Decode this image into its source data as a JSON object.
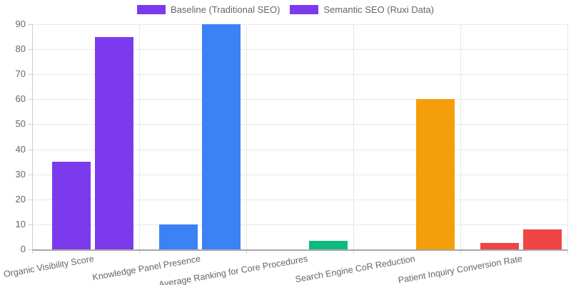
{
  "legend": {
    "items": [
      {
        "id": "baseline",
        "label": "Baseline (Traditional SEO)",
        "swatch_color": "#7c3aed"
      },
      {
        "id": "semantic",
        "label": "Semantic SEO (Ruxi Data)",
        "swatch_color": "#7c3aed"
      }
    ]
  },
  "chart_data": {
    "type": "bar",
    "title": "",
    "categories": [
      "Organic Visibility Score",
      "Knowledge Panel Presence",
      "Average Ranking for Core Procedures",
      "Search Engine CoR Reduction",
      "Patient Inquiry Conversion Rate"
    ],
    "series": [
      {
        "name": "Baseline (Traditional SEO)",
        "values": [
          35,
          10,
          0,
          0,
          2.5
        ]
      },
      {
        "name": "Semantic SEO (Ruxi Data)",
        "values": [
          85,
          90,
          3.5,
          60,
          8
        ]
      }
    ],
    "category_colors": [
      "#7c3aed",
      "#3b82f6",
      "#10b981",
      "#f59e0b",
      "#ef4444"
    ],
    "xlabel": "",
    "ylabel": "",
    "y_axis": {
      "min": 0,
      "max": 90,
      "tick_step": 10,
      "tick_labels": [
        "0",
        "10",
        "20",
        "30",
        "40",
        "50",
        "60",
        "70",
        "80",
        "90"
      ]
    },
    "grid": true,
    "legend_position": "top",
    "colors": {
      "grid_line": "#e8e8e8",
      "axis_line_x": "#a8a8a8",
      "axis_line_y": "#cfcfcf",
      "tick_text": "#666666",
      "background": "#ffffff"
    }
  }
}
